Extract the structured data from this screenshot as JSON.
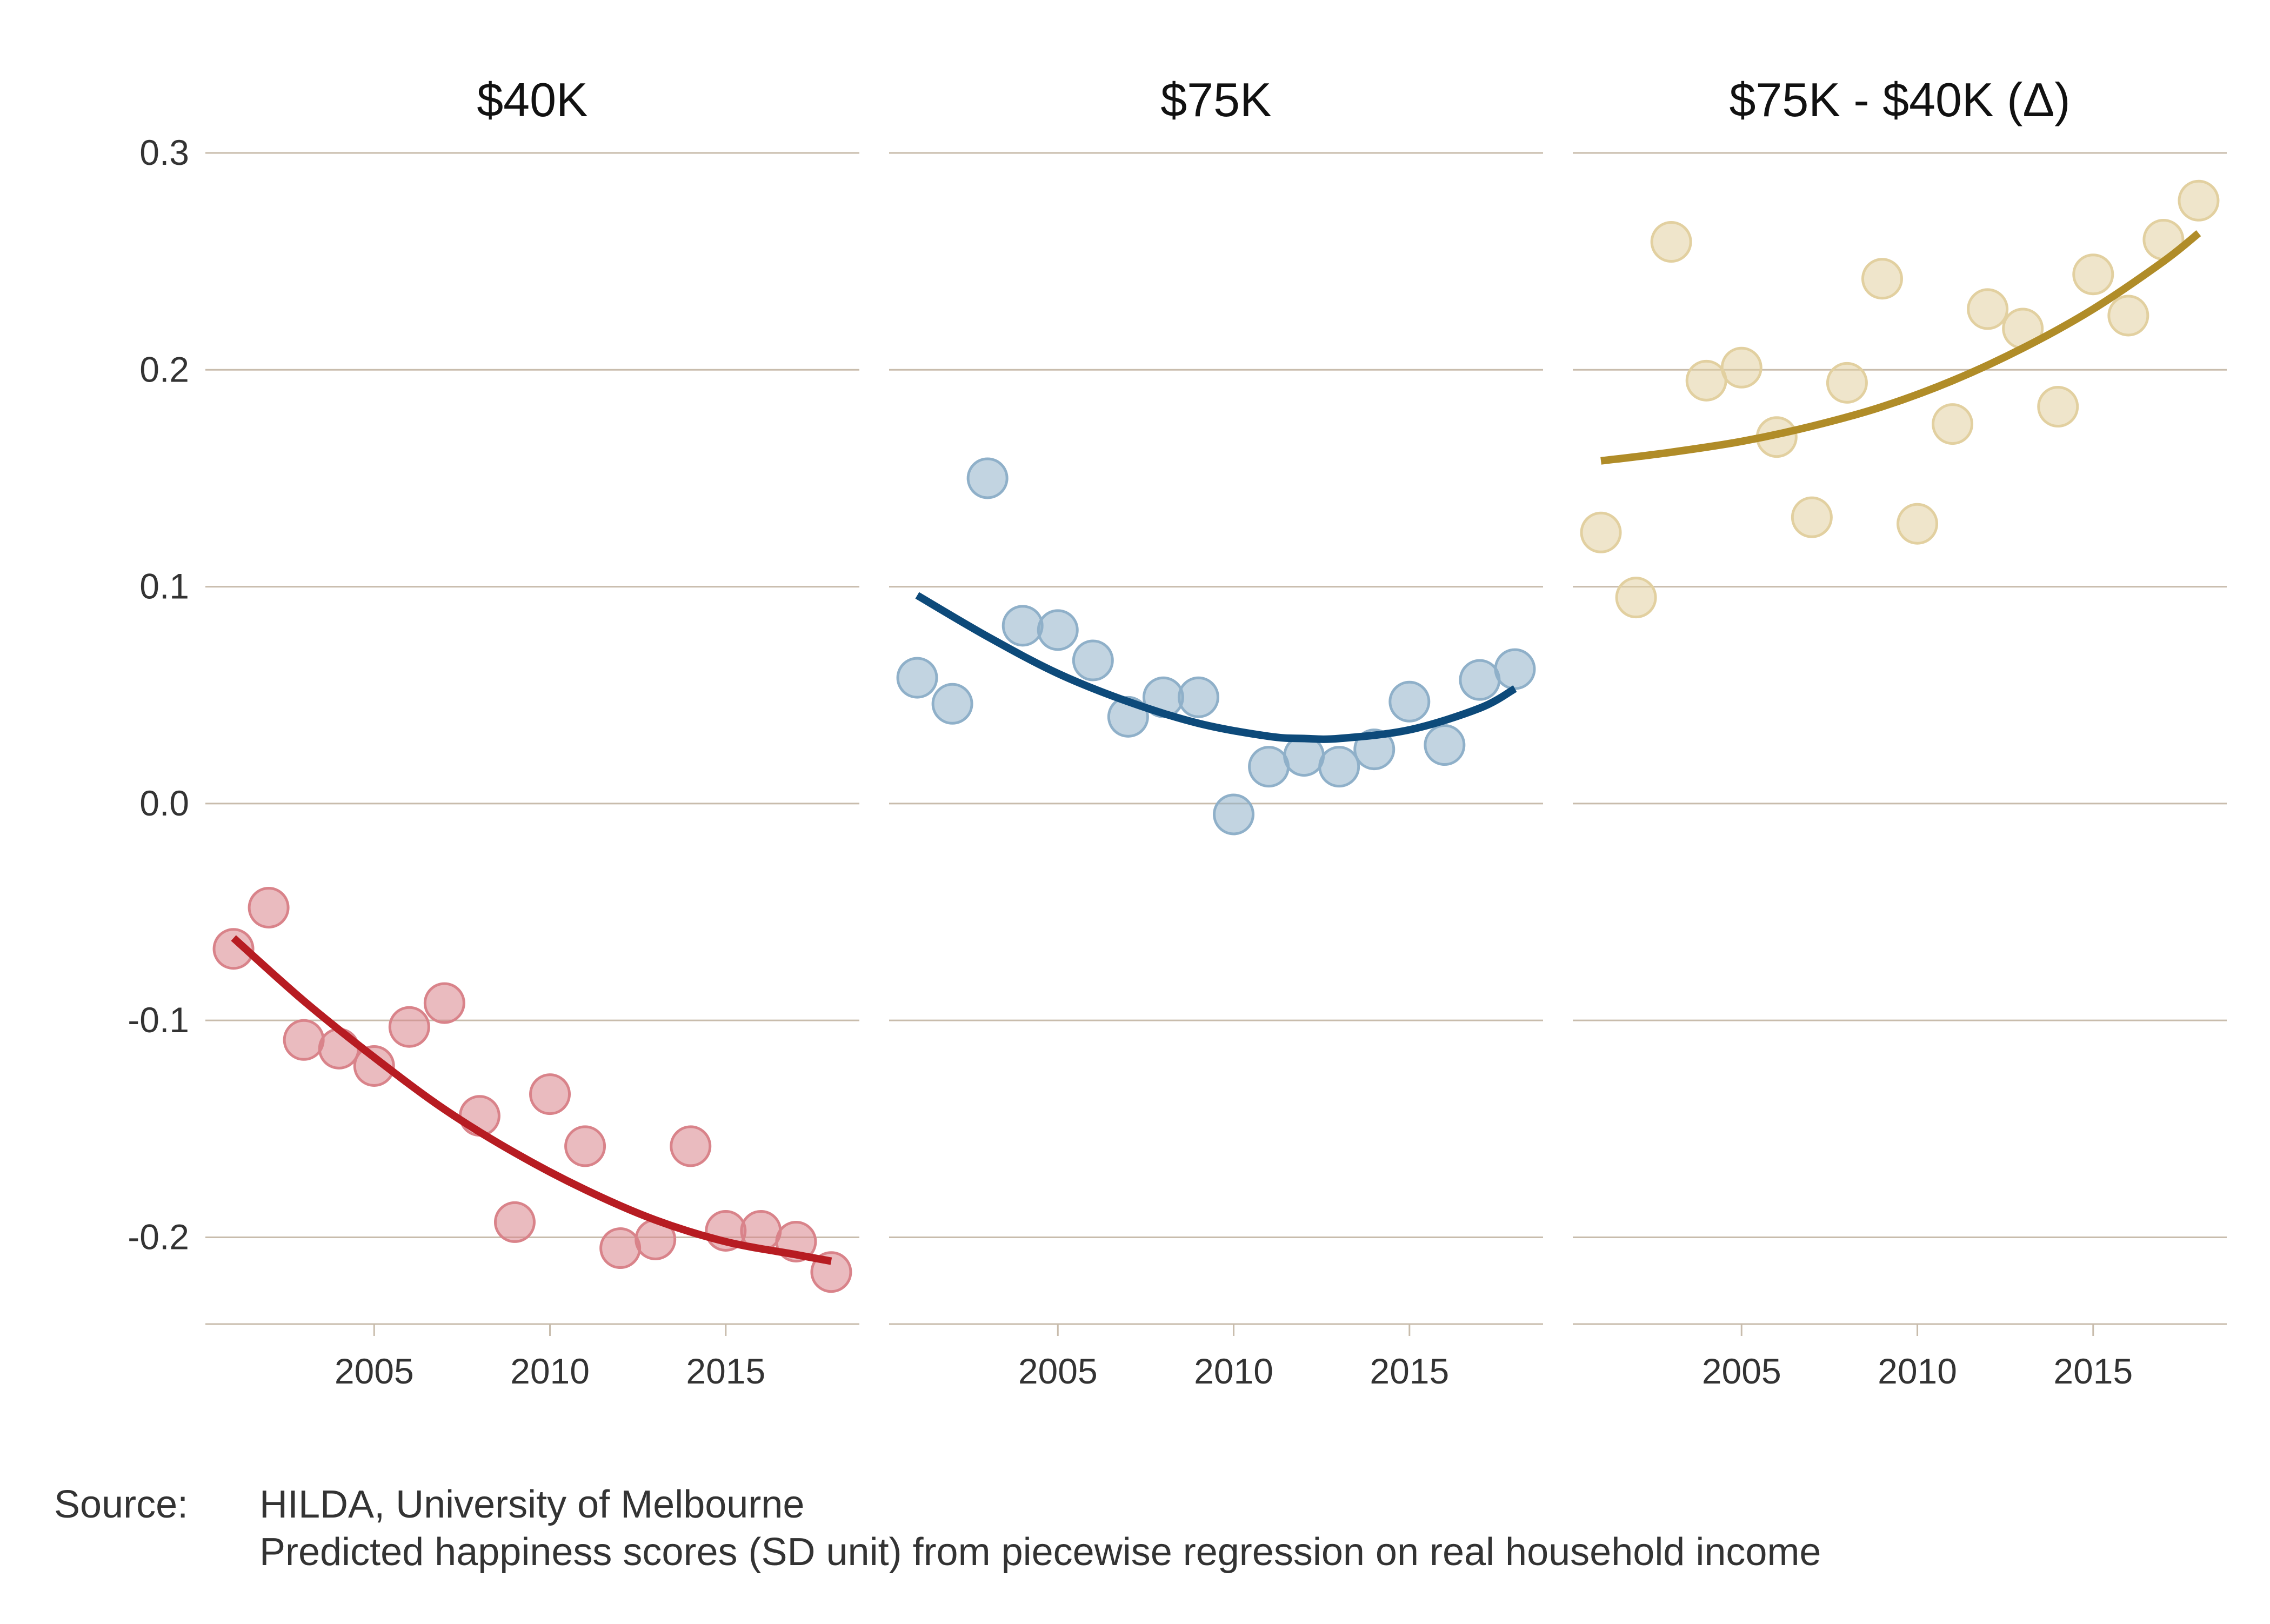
{
  "chart_data": {
    "type": "scatter",
    "y_ticks": [
      "0.3",
      "0.2",
      "0.1",
      "0.0",
      "-0.1",
      "-0.2"
    ],
    "y_tick_values": [
      0.3,
      0.2,
      0.1,
      0.0,
      -0.1,
      -0.2
    ],
    "ylim": [
      -0.24,
      0.3
    ],
    "xlim": [
      2000.2,
      2018.8
    ],
    "x_ticks": [
      "2005",
      "2010",
      "2015"
    ],
    "x_tick_values": [
      2005,
      2010,
      2015
    ],
    "grid": "horizontal",
    "panels": [
      {
        "title": "$40K",
        "color": "#b71c22",
        "point_color": "#d9838a",
        "points": [
          [
            2001,
            -0.067
          ],
          [
            2002,
            -0.048
          ],
          [
            2003,
            -0.109
          ],
          [
            2004,
            -0.113
          ],
          [
            2005,
            -0.121
          ],
          [
            2006,
            -0.103
          ],
          [
            2007,
            -0.092
          ],
          [
            2008,
            -0.144
          ],
          [
            2009,
            -0.193
          ],
          [
            2010,
            -0.134
          ],
          [
            2011,
            -0.158
          ],
          [
            2012,
            -0.205
          ],
          [
            2013,
            -0.201
          ],
          [
            2014,
            -0.158
          ],
          [
            2015,
            -0.197
          ],
          [
            2016,
            -0.197
          ],
          [
            2017,
            -0.202
          ],
          [
            2018,
            -0.216
          ]
        ],
        "fit": [
          [
            2001,
            -0.062
          ],
          [
            2003,
            -0.091
          ],
          [
            2005,
            -0.117
          ],
          [
            2007,
            -0.141
          ],
          [
            2009,
            -0.161
          ],
          [
            2011,
            -0.178
          ],
          [
            2013,
            -0.192
          ],
          [
            2015,
            -0.202
          ],
          [
            2017,
            -0.208
          ],
          [
            2018,
            -0.211
          ]
        ]
      },
      {
        "title": "$75K",
        "color": "#0d4a7a",
        "point_color": "#8fb0c9",
        "points": [
          [
            2001,
            0.058
          ],
          [
            2002,
            0.046
          ],
          [
            2003,
            0.15
          ],
          [
            2004,
            0.082
          ],
          [
            2005,
            0.08
          ],
          [
            2006,
            0.066
          ],
          [
            2007,
            0.04
          ],
          [
            2008,
            0.049
          ],
          [
            2009,
            0.049
          ],
          [
            2010,
            -0.005
          ],
          [
            2011,
            0.017
          ],
          [
            2012,
            0.022
          ],
          [
            2013,
            0.017
          ],
          [
            2014,
            0.025
          ],
          [
            2015,
            0.047
          ],
          [
            2016,
            0.027
          ],
          [
            2017,
            0.057
          ],
          [
            2018,
            0.062
          ]
        ],
        "fit": [
          [
            2001,
            0.096
          ],
          [
            2003,
            0.077
          ],
          [
            2005,
            0.06
          ],
          [
            2007,
            0.047
          ],
          [
            2009,
            0.037
          ],
          [
            2011,
            0.031
          ],
          [
            2012,
            0.03
          ],
          [
            2013,
            0.03
          ],
          [
            2015,
            0.034
          ],
          [
            2017,
            0.044
          ],
          [
            2018,
            0.053
          ]
        ]
      },
      {
        "title": "$75K - $40K (Δ)",
        "color": "#b08c28",
        "point_color": "#e2d0a0",
        "points": [
          [
            2001,
            0.125
          ],
          [
            2002,
            0.095
          ],
          [
            2003,
            0.259
          ],
          [
            2004,
            0.195
          ],
          [
            2005,
            0.201
          ],
          [
            2006,
            0.169
          ],
          [
            2007,
            0.132
          ],
          [
            2008,
            0.194
          ],
          [
            2009,
            0.242
          ],
          [
            2010,
            0.129
          ],
          [
            2011,
            0.175
          ],
          [
            2012,
            0.228
          ],
          [
            2013,
            0.219
          ],
          [
            2014,
            0.183
          ],
          [
            2015,
            0.244
          ],
          [
            2016,
            0.225
          ],
          [
            2017,
            0.26
          ],
          [
            2018,
            0.278
          ]
        ],
        "fit": [
          [
            2001,
            0.158
          ],
          [
            2003,
            0.162
          ],
          [
            2005,
            0.167
          ],
          [
            2007,
            0.174
          ],
          [
            2009,
            0.183
          ],
          [
            2011,
            0.195
          ],
          [
            2013,
            0.21
          ],
          [
            2015,
            0.228
          ],
          [
            2017,
            0.25
          ],
          [
            2018,
            0.263
          ]
        ]
      }
    ]
  },
  "source": {
    "label": "Source:",
    "text": "HILDA, University of Melbourne",
    "note": "Predicted happiness scores (SD unit) from piecewise regression on real household income"
  }
}
